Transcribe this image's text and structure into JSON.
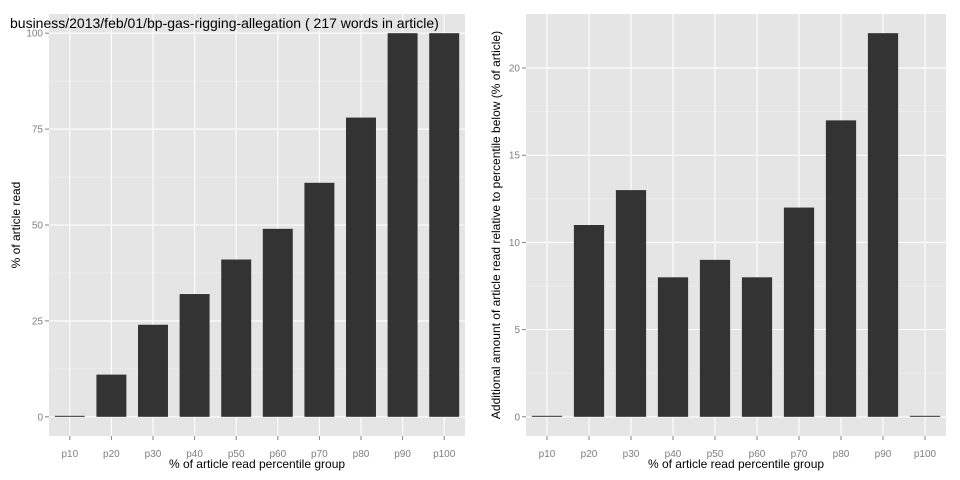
{
  "chart_data": [
    {
      "type": "bar",
      "title": "business/2013/feb/01/bp-gas-rigging-allegation ( 217 words in article)",
      "xlabel": "% of article read percentile group",
      "ylabel": "% of article read",
      "categories": [
        "p10",
        "p20",
        "p30",
        "p40",
        "p50",
        "p60",
        "p70",
        "p80",
        "p90",
        "p100"
      ],
      "values": [
        0,
        11,
        24,
        32,
        41,
        49,
        61,
        78,
        100,
        100
      ],
      "ylim": [
        -5,
        105
      ],
      "yticks": [
        0,
        25,
        50,
        75,
        100
      ],
      "grid": true,
      "bar_color": "#333333",
      "panel_color": "#e5e5e5"
    },
    {
      "type": "bar",
      "title": "",
      "xlabel": "% of article read percentile group",
      "ylabel": "Additional amount of article read relative to percentile below (% of article)",
      "categories": [
        "p10",
        "p20",
        "p30",
        "p40",
        "p50",
        "p60",
        "p70",
        "p80",
        "p90",
        "p100"
      ],
      "values": [
        0,
        11,
        13,
        8,
        9,
        8,
        12,
        17,
        22,
        0
      ],
      "ylim": [
        -1.1,
        23.1
      ],
      "yticks": [
        0,
        5,
        10,
        15,
        20
      ],
      "grid": true,
      "bar_color": "#333333",
      "panel_color": "#e5e5e5"
    }
  ]
}
